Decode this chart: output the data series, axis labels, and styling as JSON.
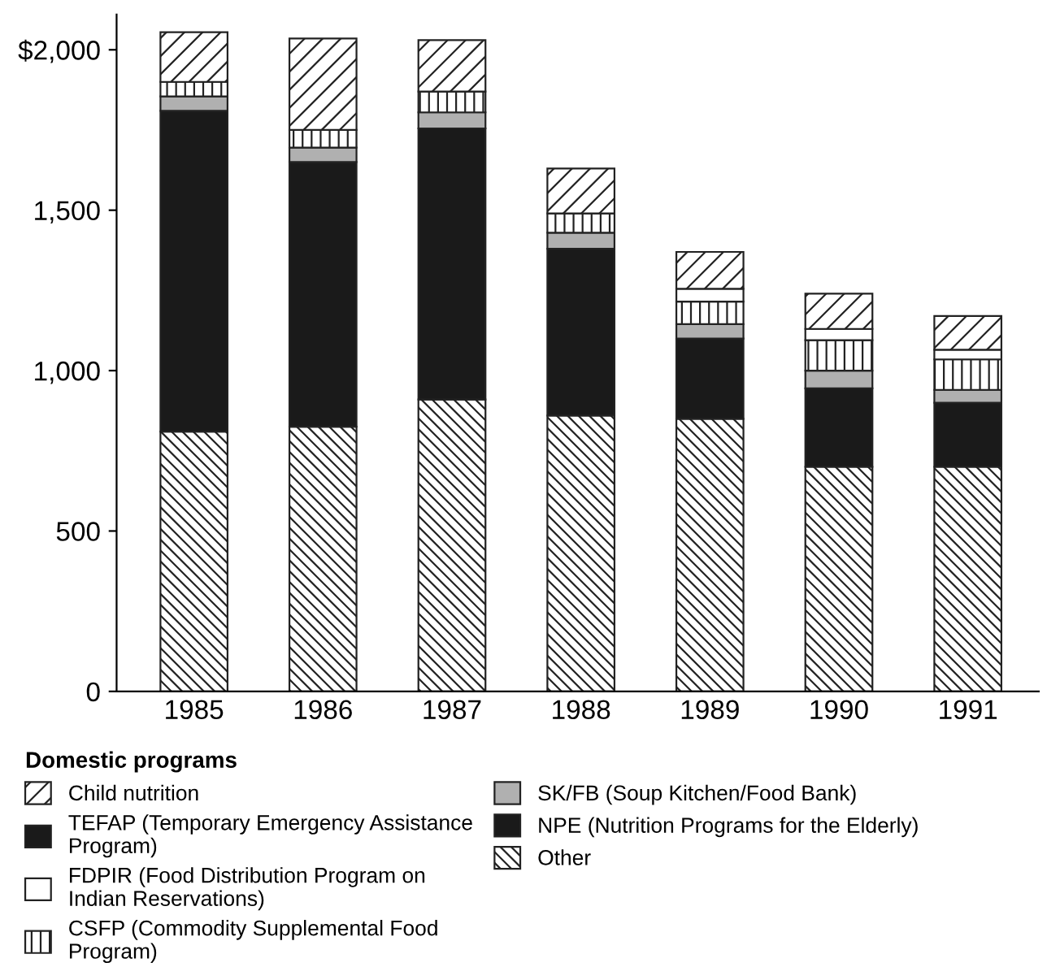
{
  "chart_data": {
    "type": "bar",
    "stacked": true,
    "legend_title": "Domestic programs",
    "categories": [
      "1985",
      "1986",
      "1987",
      "1988",
      "1989",
      "1990",
      "1991"
    ],
    "series": [
      {
        "name": "Other",
        "color": "#222222",
        "values": [
          810,
          825,
          910,
          860,
          850,
          700,
          700
        ]
      },
      {
        "name": "NPE (Nutrition Programs for the Elderly)",
        "color": "#1a1a1a",
        "values": [
          null,
          null,
          null,
          null,
          null,
          null,
          null
        ]
      },
      {
        "name": "TEFAP (Temporary Emergency Assistance Program)",
        "color": "#1a1a1a",
        "values": [
          1000,
          825,
          845,
          520,
          250,
          245,
          200
        ]
      },
      {
        "name": "SK/FB (Soup Kitchen/Food Bank)",
        "color": "#b0b0b0",
        "values": [
          45,
          45,
          50,
          50,
          45,
          55,
          40
        ]
      },
      {
        "name": "CSFP (Commodity Supplemental Food Program)",
        "color": "#222222",
        "values": [
          45,
          55,
          65,
          60,
          70,
          95,
          95
        ]
      },
      {
        "name": "FDPIR (Food Distribution Program on Indian Reservations)",
        "color": "#ffffff",
        "values": [
          null,
          null,
          null,
          null,
          40,
          35,
          30
        ]
      },
      {
        "name": "Child nutrition",
        "color": "#222222",
        "values": [
          155,
          285,
          160,
          140,
          115,
          110,
          105
        ]
      }
    ],
    "ylim": [
      0,
      2110
    ],
    "yticks": [
      0,
      500,
      {
        "value": 1000,
        "label": "1,000"
      },
      {
        "value": 1500,
        "label": "1,500"
      },
      {
        "value": 2000,
        "label": "$2,000"
      }
    ],
    "grid": false,
    "legend": "bottom"
  }
}
